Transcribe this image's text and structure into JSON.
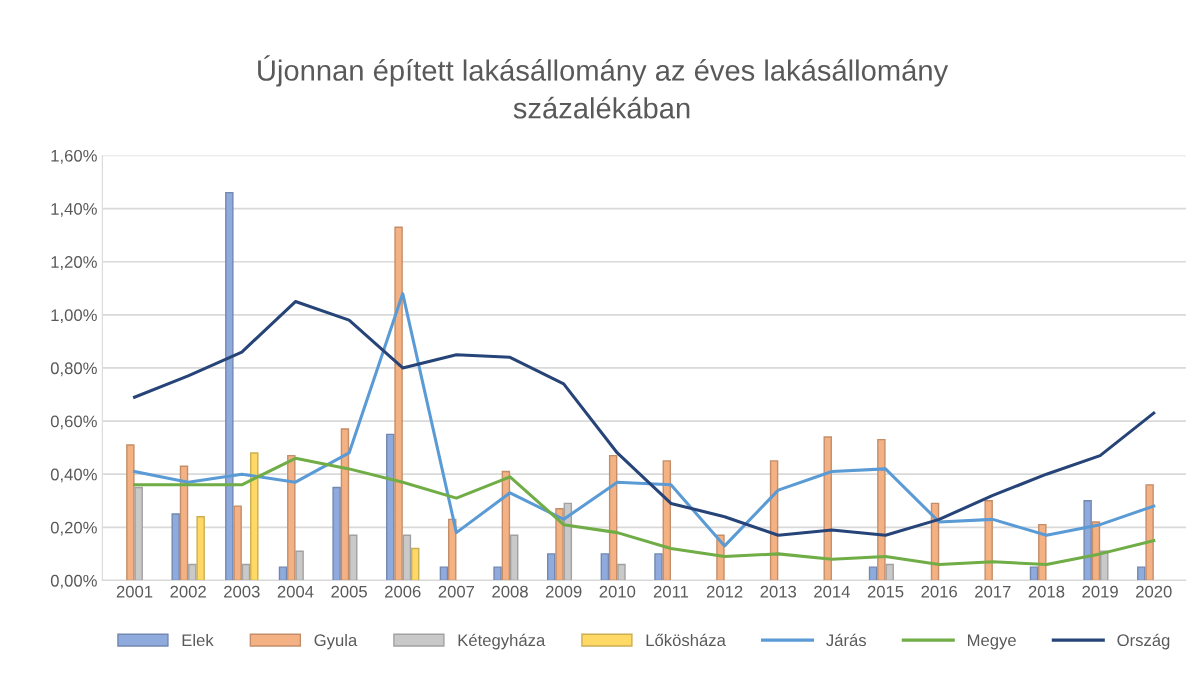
{
  "chart_data": {
    "type": "bar",
    "title": "Újonnan épített lakásállomány az éves lakásállomány\nszázalékában",
    "categories": [
      "2001",
      "2002",
      "2003",
      "2004",
      "2005",
      "2006",
      "2007",
      "2008",
      "2009",
      "2010",
      "2011",
      "2012",
      "2013",
      "2014",
      "2015",
      "2016",
      "2017",
      "2018",
      "2019",
      "2020"
    ],
    "series": [
      {
        "name": "Elek",
        "color": "#8faadc",
        "values": [
          null,
          0.25,
          1.46,
          0.05,
          0.35,
          0.55,
          0.05,
          0.05,
          0.1,
          0.1,
          0.1,
          null,
          null,
          null,
          0.05,
          null,
          null,
          0.05,
          0.3,
          0.05
        ]
      },
      {
        "name": "Gyula",
        "color": "#f4b183",
        "values": [
          0.51,
          0.43,
          0.28,
          0.47,
          0.57,
          1.33,
          0.23,
          0.41,
          0.27,
          0.47,
          0.45,
          0.17,
          0.45,
          0.54,
          0.53,
          0.29,
          0.3,
          0.21,
          0.22,
          0.36
        ]
      },
      {
        "name": "Kétegyháza",
        "color": "#c9c9c9",
        "values": [
          0.35,
          0.06,
          0.06,
          0.11,
          0.17,
          0.17,
          null,
          0.17,
          0.29,
          0.06,
          null,
          null,
          null,
          null,
          0.06,
          null,
          null,
          null,
          0.11,
          null
        ]
      },
      {
        "name": "Lőkösháza",
        "color": "#ffd966",
        "values": [
          null,
          0.24,
          0.48,
          null,
          null,
          0.12,
          null,
          null,
          null,
          null,
          null,
          null,
          null,
          null,
          null,
          null,
          null,
          null,
          null,
          null
        ]
      },
      {
        "name": "Járás",
        "type": "line",
        "color": "#5b9bd5",
        "values": [
          0.41,
          0.37,
          0.4,
          0.37,
          0.48,
          1.08,
          0.18,
          0.33,
          0.23,
          0.37,
          0.36,
          0.13,
          0.34,
          0.41,
          0.42,
          0.22,
          0.23,
          0.17,
          0.21,
          0.28
        ]
      },
      {
        "name": "Megye",
        "type": "line",
        "color": "#70ad47",
        "values": [
          0.36,
          0.36,
          0.36,
          0.46,
          0.42,
          0.37,
          0.31,
          0.39,
          0.21,
          0.18,
          0.12,
          0.09,
          0.1,
          0.08,
          0.09,
          0.06,
          0.07,
          0.06,
          0.1,
          0.15
        ]
      },
      {
        "name": "Ország",
        "type": "line",
        "color": "#264478",
        "values": [
          0.69,
          0.77,
          0.86,
          1.05,
          0.98,
          0.8,
          0.85,
          0.84,
          0.74,
          0.48,
          0.29,
          0.24,
          0.17,
          0.19,
          0.17,
          0.23,
          0.32,
          0.4,
          0.47,
          0.63
        ]
      }
    ],
    "ylim": [
      0,
      1.6
    ],
    "yticks": [
      {
        "value": 0,
        "label": "0,00%"
      },
      {
        "value": 0.2,
        "label": "0,20%"
      },
      {
        "value": 0.4,
        "label": "0,40%"
      },
      {
        "value": 0.6,
        "label": "0,60%"
      },
      {
        "value": 0.8,
        "label": "0,80%"
      },
      {
        "value": 1.0,
        "label": "1,00%"
      },
      {
        "value": 1.2,
        "label": "1,20%"
      },
      {
        "value": 1.4,
        "label": "1,40%"
      },
      {
        "value": 1.6,
        "label": "1,60%"
      }
    ],
    "grid": "y",
    "legend": "bottom",
    "marker": "none",
    "line_style": "solid"
  }
}
